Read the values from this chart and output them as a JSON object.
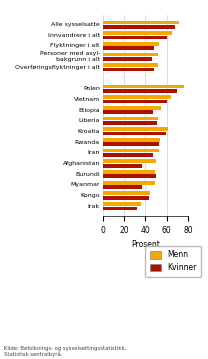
{
  "categories": [
    "Alle sysselsatte",
    "Innvandrere i alt",
    "Flyktninger i alt",
    "Personer med asyl-\nbakgrunn i alt",
    "Overføringsflyktninger i alt",
    "",
    "Polen",
    "Vietnam",
    "Etiopia",
    "Liberia",
    "Kroatia",
    "Rwanda",
    "Iran",
    "Afghanistan",
    "Burundi",
    "Myanmar",
    "Kongo",
    "Irak"
  ],
  "menn": [
    71,
    65,
    53,
    52,
    52,
    0,
    76,
    64,
    55,
    52,
    61,
    54,
    53,
    50,
    49,
    49,
    44,
    36
  ],
  "kvinner": [
    68,
    60,
    48,
    46,
    48,
    0,
    70,
    60,
    47,
    51,
    59,
    53,
    47,
    37,
    50,
    37,
    43,
    32
  ],
  "color_menn": "#F5A800",
  "color_kvinner": "#AA1100",
  "xlim": [
    0,
    80
  ],
  "xticks": [
    0,
    20,
    40,
    60,
    80
  ],
  "xlabel": "Prosent",
  "source_text": "Kilde: Befolknings- og sysselsettingsstatistikk,\nStatistisk sentralbyrå.",
  "legend_menn": "Menn",
  "legend_kvinner": "Kvinner",
  "background_color": "#ffffff",
  "grid_color": "#cccccc"
}
